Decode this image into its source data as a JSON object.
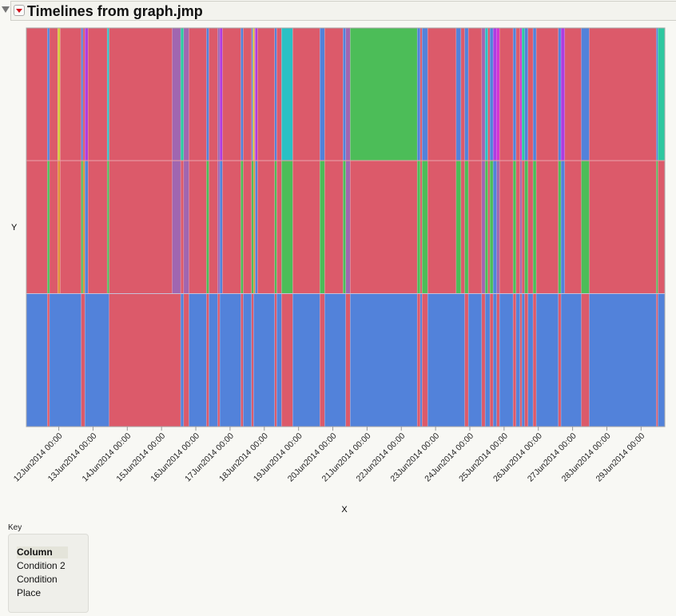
{
  "header": {
    "title": "Timelines from graph.jmp"
  },
  "key": {
    "label": "Key",
    "column_header": "Column",
    "items": [
      "Condition 2",
      "Condition",
      "Place"
    ]
  },
  "palette": {
    "R": "#dc5a6a",
    "B": "#5282da",
    "G": "#4cbd58",
    "Y": "#d6c83a",
    "V": "#a066b0",
    "T": "#2ec8a0",
    "C": "#2ac0c4",
    "P": "#b03ce0",
    "M": "#d232d2",
    "O": "#e0903a"
  },
  "chart_data": {
    "type": "heatmap",
    "xlabel": "X",
    "ylabel": "Y",
    "xlim": [
      "2014-06-11T01:17",
      "2014-06-29T16:37"
    ],
    "grid": false,
    "x_ticks": [
      "2014-06-12T00:00",
      "2014-06-13T00:00",
      "2014-06-14T00:00",
      "2014-06-15T00:00",
      "2014-06-16T00:00",
      "2014-06-17T00:00",
      "2014-06-18T00:00",
      "2014-06-19T00:00",
      "2014-06-20T00:00",
      "2014-06-21T00:00",
      "2014-06-22T00:00",
      "2014-06-23T00:00",
      "2014-06-24T00:00",
      "2014-06-25T00:00",
      "2014-06-26T00:00",
      "2014-06-27T00:00",
      "2014-06-28T00:00",
      "2014-06-29T00:00"
    ],
    "x_tick_labels": [
      "12Jun2014 00:00",
      "13Jun2014 00:00",
      "14Jun2014 00:00",
      "15Jun2014 00:00",
      "16Jun2014 00:00",
      "17Jun2014 00:00",
      "18Jun2014 00:00",
      "19Jun2014 00:00",
      "20Jun2014 00:00",
      "21Jun2014 00:00",
      "22Jun2014 00:00",
      "23Jun2014 00:00",
      "24Jun2014 00:00",
      "25Jun2014 00:00",
      "26Jun2014 00:00",
      "27Jun2014 00:00",
      "28Jun2014 00:00",
      "29Jun2014 00:00"
    ],
    "rows": [
      {
        "segments": [
          [
            "2014-06-11T01:17",
            "R"
          ],
          [
            "2014-06-11T16:00",
            "B"
          ],
          [
            "2014-06-11T17:31",
            "R"
          ],
          [
            "2014-06-11T23:16",
            "Y"
          ],
          [
            "2014-06-12T00:57",
            "R"
          ],
          [
            "2014-06-12T15:40",
            "B"
          ],
          [
            "2014-06-12T17:00",
            "R"
          ],
          [
            "2014-06-12T18:18",
            "P"
          ],
          [
            "2014-06-12T20:32",
            "R"
          ],
          [
            "2014-06-13T09:57",
            "C"
          ],
          [
            "2014-06-13T11:15",
            "R"
          ],
          [
            "2014-06-15T07:26",
            "V"
          ],
          [
            "2014-06-15T13:26",
            "T"
          ],
          [
            "2014-06-15T15:30",
            "V"
          ],
          [
            "2014-06-15T19:11",
            "R"
          ],
          [
            "2014-06-16T07:30",
            "B"
          ],
          [
            "2014-06-16T09:10",
            "R"
          ],
          [
            "2014-06-16T15:20",
            "V"
          ],
          [
            "2014-06-16T16:50",
            "P"
          ],
          [
            "2014-06-16T18:41",
            "R"
          ],
          [
            "2014-06-17T07:33",
            "B"
          ],
          [
            "2014-06-17T09:14",
            "R"
          ],
          [
            "2014-06-17T15:03",
            "B"
          ],
          [
            "2014-06-17T15:57",
            "Y"
          ],
          [
            "2014-06-17T17:04",
            "R"
          ],
          [
            "2014-06-17T17:37",
            "P"
          ],
          [
            "2014-06-17T19:18",
            "R"
          ],
          [
            "2014-06-18T07:16",
            "B"
          ],
          [
            "2014-06-18T08:44",
            "R"
          ],
          [
            "2014-06-18T12:05",
            "C"
          ],
          [
            "2014-06-18T19:55",
            "R"
          ],
          [
            "2014-06-19T14:56",
            "B"
          ],
          [
            "2014-06-19T18:18",
            "R"
          ],
          [
            "2014-06-20T07:10",
            "B"
          ],
          [
            "2014-06-20T09:04",
            "V"
          ],
          [
            "2014-06-20T12:12",
            "G"
          ],
          [
            "2014-06-22T11:11",
            "B"
          ],
          [
            "2014-06-22T13:15",
            "R"
          ],
          [
            "2014-06-22T14:33",
            "B"
          ],
          [
            "2014-06-22T18:28",
            "R"
          ],
          [
            "2014-06-23T14:26",
            "B"
          ],
          [
            "2014-06-23T17:47",
            "R"
          ],
          [
            "2014-06-23T20:25",
            "B"
          ],
          [
            "2014-06-23T22:59",
            "R"
          ],
          [
            "2014-06-24T08:20",
            "V"
          ],
          [
            "2014-06-24T10:45",
            "C"
          ],
          [
            "2014-06-24T12:39",
            "R"
          ],
          [
            "2014-06-24T14:06",
            "B"
          ],
          [
            "2014-06-24T16:20",
            "P"
          ],
          [
            "2014-06-24T18:48",
            "M"
          ],
          [
            "2014-06-24T20:49",
            "R"
          ],
          [
            "2014-06-25T06:19",
            "B"
          ],
          [
            "2014-06-25T08:24",
            "R"
          ],
          [
            "2014-06-25T11:11",
            "M"
          ],
          [
            "2014-06-25T12:28",
            "T"
          ],
          [
            "2014-06-25T14:23",
            "B"
          ],
          [
            "2014-06-25T16:47",
            "R"
          ],
          [
            "2014-06-25T20:18",
            "B"
          ],
          [
            "2014-06-25T22:33",
            "R"
          ],
          [
            "2014-06-26T14:03",
            "B"
          ],
          [
            "2014-06-26T15:53",
            "P"
          ],
          [
            "2014-06-26T18:31",
            "R"
          ],
          [
            "2014-06-27T06:06",
            "B"
          ],
          [
            "2014-06-27T11:41",
            "R"
          ],
          [
            "2014-06-29T10:41",
            "B"
          ],
          [
            "2014-06-29T11:48",
            "T"
          ]
        ]
      },
      {
        "segments": [
          [
            "2014-06-11T01:17",
            "R"
          ],
          [
            "2014-06-11T16:00",
            "G"
          ],
          [
            "2014-06-11T17:31",
            "R"
          ],
          [
            "2014-06-11T23:16",
            "O"
          ],
          [
            "2014-06-12T00:57",
            "R"
          ],
          [
            "2014-06-12T15:40",
            "G"
          ],
          [
            "2014-06-12T17:00",
            "O"
          ],
          [
            "2014-06-12T18:18",
            "B"
          ],
          [
            "2014-06-12T20:32",
            "R"
          ],
          [
            "2014-06-13T09:57",
            "G"
          ],
          [
            "2014-06-13T11:15",
            "R"
          ],
          [
            "2014-06-15T07:26",
            "V"
          ],
          [
            "2014-06-15T13:26",
            "R"
          ],
          [
            "2014-06-15T15:30",
            "V"
          ],
          [
            "2014-06-15T19:11",
            "R"
          ],
          [
            "2014-06-16T07:30",
            "G"
          ],
          [
            "2014-06-16T09:10",
            "R"
          ],
          [
            "2014-06-16T15:20",
            "V"
          ],
          [
            "2014-06-16T16:50",
            "B"
          ],
          [
            "2014-06-16T18:41",
            "R"
          ],
          [
            "2014-06-17T07:33",
            "G"
          ],
          [
            "2014-06-17T09:14",
            "R"
          ],
          [
            "2014-06-17T15:03",
            "G"
          ],
          [
            "2014-06-17T16:30",
            "O"
          ],
          [
            "2014-06-17T17:37",
            "B"
          ],
          [
            "2014-06-17T19:18",
            "R"
          ],
          [
            "2014-06-18T07:16",
            "G"
          ],
          [
            "2014-06-18T08:44",
            "R"
          ],
          [
            "2014-06-18T12:05",
            "G"
          ],
          [
            "2014-06-18T19:55",
            "R"
          ],
          [
            "2014-06-19T14:56",
            "G"
          ],
          [
            "2014-06-19T18:18",
            "R"
          ],
          [
            "2014-06-20T07:10",
            "G"
          ],
          [
            "2014-06-20T09:04",
            "V"
          ],
          [
            "2014-06-20T12:12",
            "R"
          ],
          [
            "2014-06-22T11:11",
            "G"
          ],
          [
            "2014-06-22T13:15",
            "R"
          ],
          [
            "2014-06-22T14:33",
            "G"
          ],
          [
            "2014-06-22T18:28",
            "R"
          ],
          [
            "2014-06-23T14:26",
            "G"
          ],
          [
            "2014-06-23T17:47",
            "R"
          ],
          [
            "2014-06-23T20:25",
            "G"
          ],
          [
            "2014-06-23T22:59",
            "R"
          ],
          [
            "2014-06-24T08:20",
            "V"
          ],
          [
            "2014-06-24T10:45",
            "G"
          ],
          [
            "2014-06-24T12:39",
            "R"
          ],
          [
            "2014-06-24T14:06",
            "G"
          ],
          [
            "2014-06-24T16:20",
            "B"
          ],
          [
            "2014-06-24T18:48",
            "V"
          ],
          [
            "2014-06-24T20:49",
            "R"
          ],
          [
            "2014-06-25T06:19",
            "G"
          ],
          [
            "2014-06-25T08:24",
            "R"
          ],
          [
            "2014-06-25T11:11",
            "V"
          ],
          [
            "2014-06-25T12:28",
            "R"
          ],
          [
            "2014-06-25T14:23",
            "G"
          ],
          [
            "2014-06-25T16:47",
            "R"
          ],
          [
            "2014-06-25T20:18",
            "G"
          ],
          [
            "2014-06-25T22:33",
            "R"
          ],
          [
            "2014-06-26T14:03",
            "G"
          ],
          [
            "2014-06-26T15:53",
            "B"
          ],
          [
            "2014-06-26T18:31",
            "R"
          ],
          [
            "2014-06-27T06:06",
            "G"
          ],
          [
            "2014-06-27T11:41",
            "R"
          ],
          [
            "2014-06-29T10:41",
            "G"
          ],
          [
            "2014-06-29T11:48",
            "R"
          ]
        ]
      },
      {
        "segments": [
          [
            "2014-06-11T01:17",
            "B"
          ],
          [
            "2014-06-11T16:00",
            "R"
          ],
          [
            "2014-06-11T17:31",
            "B"
          ],
          [
            "2014-06-12T15:40",
            "R"
          ],
          [
            "2014-06-12T18:18",
            "B"
          ],
          [
            "2014-06-13T11:15",
            "R"
          ],
          [
            "2014-06-15T13:26",
            "B"
          ],
          [
            "2014-06-15T15:30",
            "R"
          ],
          [
            "2014-06-15T19:11",
            "B"
          ],
          [
            "2014-06-16T07:30",
            "R"
          ],
          [
            "2014-06-16T09:10",
            "B"
          ],
          [
            "2014-06-16T15:20",
            "R"
          ],
          [
            "2014-06-16T16:50",
            "B"
          ],
          [
            "2014-06-17T07:33",
            "R"
          ],
          [
            "2014-06-17T09:14",
            "B"
          ],
          [
            "2014-06-17T15:03",
            "R"
          ],
          [
            "2014-06-17T16:30",
            "B"
          ],
          [
            "2014-06-18T07:16",
            "R"
          ],
          [
            "2014-06-18T08:44",
            "B"
          ],
          [
            "2014-06-18T12:05",
            "R"
          ],
          [
            "2014-06-18T19:55",
            "B"
          ],
          [
            "2014-06-19T14:56",
            "R"
          ],
          [
            "2014-06-19T18:18",
            "B"
          ],
          [
            "2014-06-20T09:04",
            "R"
          ],
          [
            "2014-06-20T12:12",
            "B"
          ],
          [
            "2014-06-22T11:11",
            "R"
          ],
          [
            "2014-06-22T13:15",
            "B"
          ],
          [
            "2014-06-22T14:33",
            "R"
          ],
          [
            "2014-06-22T18:28",
            "B"
          ],
          [
            "2014-06-23T20:25",
            "R"
          ],
          [
            "2014-06-23T22:59",
            "B"
          ],
          [
            "2014-06-24T08:20",
            "R"
          ],
          [
            "2014-06-24T10:45",
            "B"
          ],
          [
            "2014-06-24T14:06",
            "R"
          ],
          [
            "2014-06-24T16:20",
            "B"
          ],
          [
            "2014-06-24T18:48",
            "R"
          ],
          [
            "2014-06-24T20:49",
            "B"
          ],
          [
            "2014-06-25T06:19",
            "R"
          ],
          [
            "2014-06-25T08:24",
            "B"
          ],
          [
            "2014-06-25T11:11",
            "R"
          ],
          [
            "2014-06-25T12:28",
            "B"
          ],
          [
            "2014-06-25T14:23",
            "R"
          ],
          [
            "2014-06-25T16:47",
            "B"
          ],
          [
            "2014-06-25T20:18",
            "R"
          ],
          [
            "2014-06-25T22:33",
            "B"
          ],
          [
            "2014-06-26T14:03",
            "R"
          ],
          [
            "2014-06-26T15:53",
            "B"
          ],
          [
            "2014-06-27T06:06",
            "R"
          ],
          [
            "2014-06-27T11:41",
            "B"
          ],
          [
            "2014-06-29T10:41",
            "R"
          ],
          [
            "2014-06-29T11:48",
            "B"
          ]
        ]
      }
    ]
  }
}
